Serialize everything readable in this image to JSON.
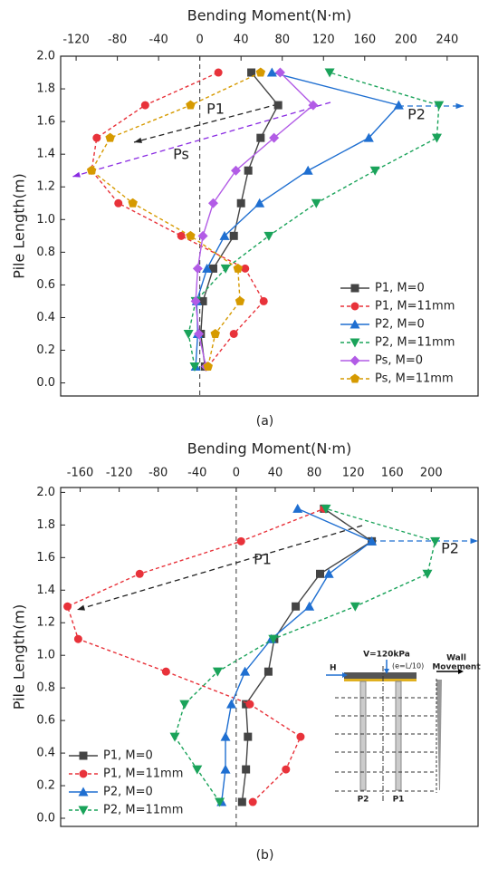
{
  "chart_data": [
    {
      "type": "line",
      "caption": "(a)",
      "x_label": "Bending Moment(N·m)",
      "y_label": "Pile Length(m)",
      "xlim": [
        -135,
        270
      ],
      "xticks": [
        -120,
        -80,
        -40,
        0,
        40,
        80,
        120,
        160,
        200,
        240
      ],
      "ylim": [
        -0.08,
        2.0
      ],
      "yticks": [
        {
          "value": 0,
          "label": "0.0"
        },
        0.2,
        0.4,
        0.6,
        0.8,
        {
          "value": 1,
          "label": "1.0"
        },
        1.2,
        1.4,
        1.6,
        1.8,
        {
          "value": 2,
          "label": "2.0"
        }
      ],
      "legend": "lower right",
      "y": [
        0.1,
        0.3,
        0.5,
        0.7,
        0.9,
        1.1,
        1.3,
        1.5,
        1.7,
        1.9
      ],
      "series": [
        {
          "name": "P1, M=0",
          "color": "#444444",
          "marker": "square",
          "dashed": false,
          "values": [
            5,
            1,
            3,
            13,
            33,
            40,
            47,
            59,
            76,
            50
          ]
        },
        {
          "name": "P1, M=11mm",
          "color": "#e8323a",
          "marker": "circle",
          "dashed": true,
          "values": [
            8,
            33,
            62,
            44,
            -18,
            -79,
            -105,
            -100,
            -53,
            18
          ]
        },
        {
          "name": "P2, M=0",
          "color": "#1f6fd1",
          "marker": "triangle-up",
          "dashed": false,
          "values": [
            -4,
            -2,
            -3,
            7,
            24,
            58,
            105,
            164,
            193,
            70
          ]
        },
        {
          "name": "P2, M=11mm",
          "color": "#1aa35a",
          "marker": "triangle-down",
          "dashed": true,
          "values": [
            -5,
            -11,
            -4,
            25,
            67,
            113,
            170,
            230,
            232,
            126
          ]
        },
        {
          "name": "Ps, M=0",
          "color": "#b25ce6",
          "marker": "diamond",
          "dashed": false,
          "values": [
            6,
            -1,
            -4,
            -2,
            3,
            13,
            35,
            72,
            110,
            78
          ]
        },
        {
          "name": "Ps, M=11mm",
          "color": "#d69a00",
          "marker": "pentagon",
          "dashed": true,
          "values": [
            8,
            15,
            39,
            37,
            -9,
            -65,
            -105,
            -87,
            -9,
            59
          ]
        }
      ],
      "annotations": [
        "P1",
        "P2",
        "Ps"
      ]
    },
    {
      "type": "line",
      "caption": "(b)",
      "x_label": "Bending Moment(N·m)",
      "y_label": "Pile Length(m)",
      "xlim": [
        -180,
        248
      ],
      "xticks": [
        -160,
        -120,
        -80,
        -40,
        0,
        40,
        80,
        120,
        160,
        200
      ],
      "ylim": [
        -0.05,
        2.03
      ],
      "yticks": [
        {
          "value": 0,
          "label": "0.0"
        },
        0.2,
        0.4,
        0.6,
        0.8,
        {
          "value": 1,
          "label": "1.0"
        },
        1.2,
        1.4,
        1.6,
        1.8,
        {
          "value": 2,
          "label": "2.0"
        }
      ],
      "legend": "lower left",
      "y": [
        0.1,
        0.3,
        0.5,
        0.7,
        0.9,
        1.1,
        1.3,
        1.5,
        1.7,
        1.9
      ],
      "series": [
        {
          "name": "P1, M=0",
          "color": "#444444",
          "marker": "square",
          "dashed": false,
          "values": [
            6,
            10,
            12,
            10,
            33,
            39,
            61,
            86,
            139,
            90
          ]
        },
        {
          "name": "P1, M=11mm",
          "color": "#e8323a",
          "marker": "circle",
          "dashed": true,
          "values": [
            17,
            51,
            66,
            14,
            -72,
            -162,
            -173,
            -99,
            5,
            90
          ]
        },
        {
          "name": "P2, M=0",
          "color": "#1f6fd1",
          "marker": "triangle-up",
          "dashed": false,
          "values": [
            -15,
            -11,
            -11,
            -5,
            9,
            36,
            75,
            95,
            139,
            63
          ]
        },
        {
          "name": "P2, M=11mm",
          "color": "#1aa35a",
          "marker": "triangle-down",
          "dashed": true,
          "values": [
            -17,
            -40,
            -63,
            -53,
            -19,
            38,
            122,
            196,
            204,
            92
          ]
        }
      ],
      "annotations": [
        "P1",
        "P2"
      ],
      "inset": {
        "load": "V=120kPa",
        "eccentricity": "(e=L/10)",
        "force": "H",
        "wall": [
          "Wall",
          "Movement"
        ],
        "piles": [
          "P2",
          "P1"
        ]
      }
    }
  ]
}
